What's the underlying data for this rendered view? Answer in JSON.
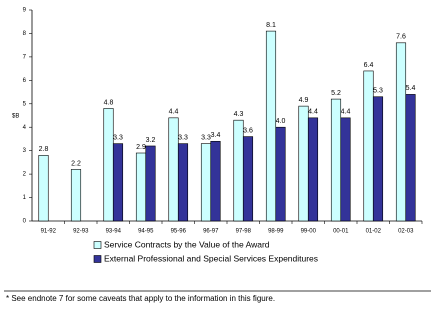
{
  "chart_data": {
    "type": "bar",
    "categories": [
      "91-92",
      "92-93",
      "93-94",
      "94-95",
      "95-96",
      "96-97",
      "97-98",
      "98-99",
      "99-00",
      "00-01",
      "01-02",
      "02-03"
    ],
    "series": [
      {
        "name": "Service Contracts by the Value of the Award",
        "color": "#ccffff",
        "values": [
          2.8,
          2.2,
          4.8,
          2.9,
          4.4,
          3.3,
          4.3,
          8.1,
          4.9,
          5.2,
          6.4,
          7.6
        ]
      },
      {
        "name": "External Professional and Special Services Expenditures",
        "color": "#333399",
        "values": [
          null,
          null,
          3.3,
          3.2,
          3.3,
          3.4,
          3.6,
          4,
          4.4,
          4.4,
          5.3,
          5.4
        ],
        "value_labels": [
          null,
          null,
          "3.3",
          "3.2",
          "3.3",
          "3.4",
          "3.6",
          "4.0",
          "4.4",
          "4.4",
          "5.3",
          "5.4"
        ]
      }
    ],
    "ylabel": "$B",
    "ylim": [
      0,
      9
    ],
    "yticks": [
      0,
      1,
      2,
      3,
      4,
      5,
      6,
      7,
      8,
      9
    ],
    "grid": false,
    "legend": "bottom",
    "footnote": "* See endnote 7 for some caveats that apply to the information in this figure."
  }
}
